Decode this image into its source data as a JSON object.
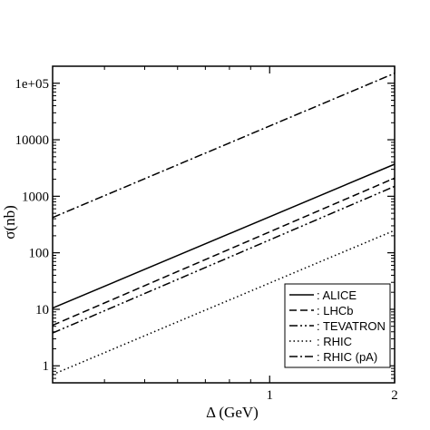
{
  "chart_data": {
    "type": "line",
    "title": "",
    "xlabel": "Δ (GeV)",
    "ylabel": "σ(nb)",
    "xscale": "log",
    "yscale": "log",
    "xlim": [
      0.3,
      2.0
    ],
    "ylim": [
      0.5,
      200000
    ],
    "xticks": [
      {
        "value": 1,
        "label": "1"
      },
      {
        "value": 2,
        "label": "2"
      }
    ],
    "yticks": [
      {
        "value": 1,
        "label": "1"
      },
      {
        "value": 10,
        "label": "10"
      },
      {
        "value": 100,
        "label": "100"
      },
      {
        "value": 1000,
        "label": "1000"
      },
      {
        "value": 10000,
        "label": "10000"
      },
      {
        "value": 100000,
        "label": "1e+05"
      }
    ],
    "grid": false,
    "legend_position": "bottom-right",
    "series": [
      {
        "name": ": ALICE",
        "style": "solid",
        "x": [
          0.3,
          2.0
        ],
        "y": [
          10.5,
          3700
        ]
      },
      {
        "name": ": LHCb",
        "style": "dashed",
        "x": [
          0.3,
          2.0
        ],
        "y": [
          5.2,
          2100
        ]
      },
      {
        "name": ": TEVATRON",
        "style": "dashdotdot",
        "x": [
          0.3,
          2.0
        ],
        "y": [
          3.8,
          1500
        ]
      },
      {
        "name": ": RHIC",
        "style": "dotted",
        "x": [
          0.3,
          2.0
        ],
        "y": [
          0.7,
          250
        ]
      },
      {
        "name": ": RHIC (pA)",
        "style": "dashdot",
        "x": [
          0.3,
          2.0
        ],
        "y": [
          420,
          150000
        ]
      }
    ]
  }
}
